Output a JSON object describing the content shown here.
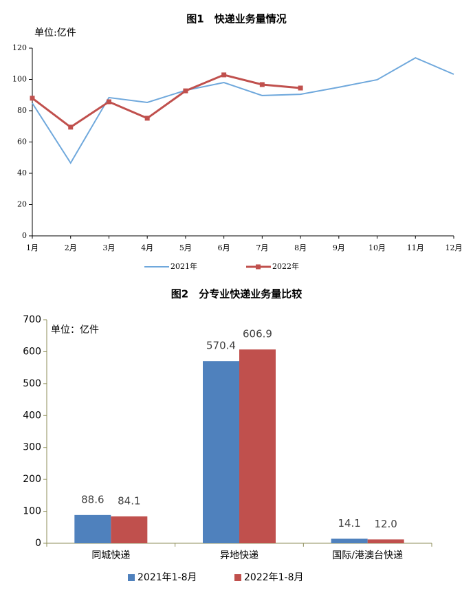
{
  "chart_data": [
    {
      "type": "line",
      "title": "图1　快递业务量情况",
      "unit_label": "单位:亿件",
      "categories": [
        "1月",
        "2月",
        "3月",
        "4月",
        "5月",
        "6月",
        "7月",
        "8月",
        "9月",
        "10月",
        "11月",
        "12月"
      ],
      "series": [
        {
          "name": "2021年",
          "color": "#6fa8dc",
          "values": [
            84.8,
            46.6,
            88.4,
            85.3,
            93,
            98,
            89.7,
            90.5,
            95,
            99.8,
            113.8,
            103.3
          ]
        },
        {
          "name": "2022年",
          "color": "#c0504d",
          "values": [
            88,
            69.5,
            85.7,
            75.2,
            92.7,
            102.9,
            96.7,
            94.5,
            null,
            null,
            null,
            null
          ]
        }
      ],
      "ylim": [
        0,
        120
      ],
      "yticks": [
        0,
        20,
        40,
        60,
        80,
        100,
        120
      ]
    },
    {
      "type": "bar",
      "title": "图2　分专业快递业务量比较",
      "unit_label": "单位：亿件",
      "categories": [
        "同城快递",
        "异地快递",
        "国际/港澳台快递"
      ],
      "series": [
        {
          "name": "2021年1-8月",
          "color": "#4f81bd",
          "values": [
            88.6,
            570.4,
            14.1
          ],
          "value_labels": [
            "88.6",
            "570.4",
            "14.1"
          ]
        },
        {
          "name": "2022年1-8月",
          "color": "#c0504d",
          "values": [
            84.1,
            606.9,
            12.0
          ],
          "value_labels": [
            "84.1",
            "606.9",
            "12.0"
          ]
        }
      ],
      "ylim": [
        0,
        700
      ],
      "yticks": [
        0,
        100,
        200,
        300,
        400,
        500,
        600,
        700
      ]
    }
  ]
}
